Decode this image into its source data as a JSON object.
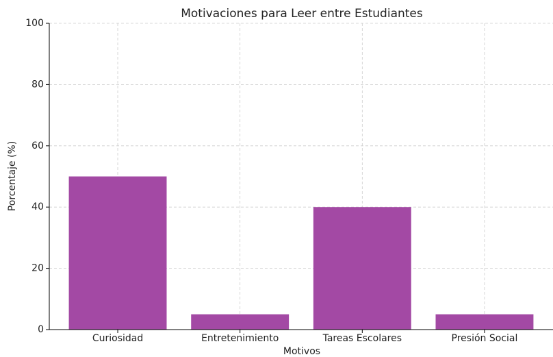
{
  "chart_data": {
    "type": "bar",
    "title": "Motivaciones para Leer entre Estudiantes",
    "x_label": "Motivos",
    "y_label": "Porcentaje (%)",
    "categories": [
      "Curiosidad",
      "Entretenimiento",
      "Tareas Escolares",
      "Presión Social"
    ],
    "values": [
      50,
      5,
      40,
      5
    ],
    "color": "#a349a4",
    "ylim": [
      0,
      100
    ],
    "yticks": [
      0,
      20,
      40,
      60,
      80,
      100
    ],
    "grid": true
  }
}
